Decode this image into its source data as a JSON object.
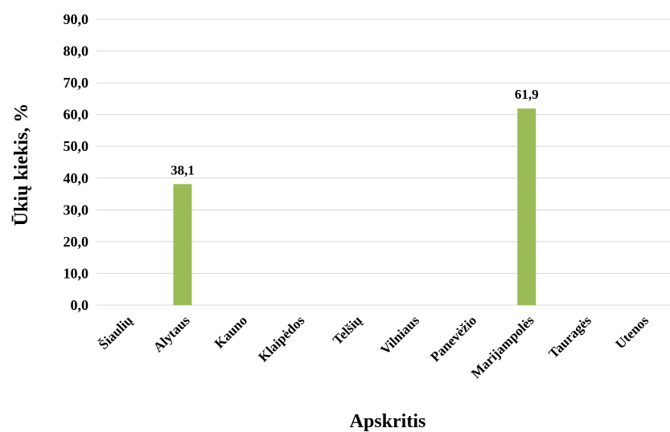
{
  "chart_data": {
    "type": "bar",
    "categories": [
      "Šiaulių",
      "Alytaus",
      "Kauno",
      "Klaipėdos",
      "Telšių",
      "Vilniaus",
      "Panevėžio",
      "Marijampolės",
      "Tauragės",
      "Utenos"
    ],
    "series": [
      {
        "values": [
          0,
          38.1,
          0,
          0,
          0,
          0,
          0,
          61.9,
          0,
          0
        ],
        "data_labels": [
          "",
          "38,1",
          "",
          "",
          "",
          "",
          "",
          "61,9",
          "",
          ""
        ]
      }
    ],
    "yticks": [
      "0,0",
      "10,0",
      "20,0",
      "30,0",
      "40,0",
      "50,0",
      "60,0",
      "70,0",
      "80,0",
      "90,0"
    ],
    "ylim": [
      0,
      90
    ],
    "xlabel": "Apskritis",
    "ylabel": "Ūkių kiekis, %",
    "bar_color": "#9bbb59",
    "grid": true,
    "legend": "none"
  }
}
